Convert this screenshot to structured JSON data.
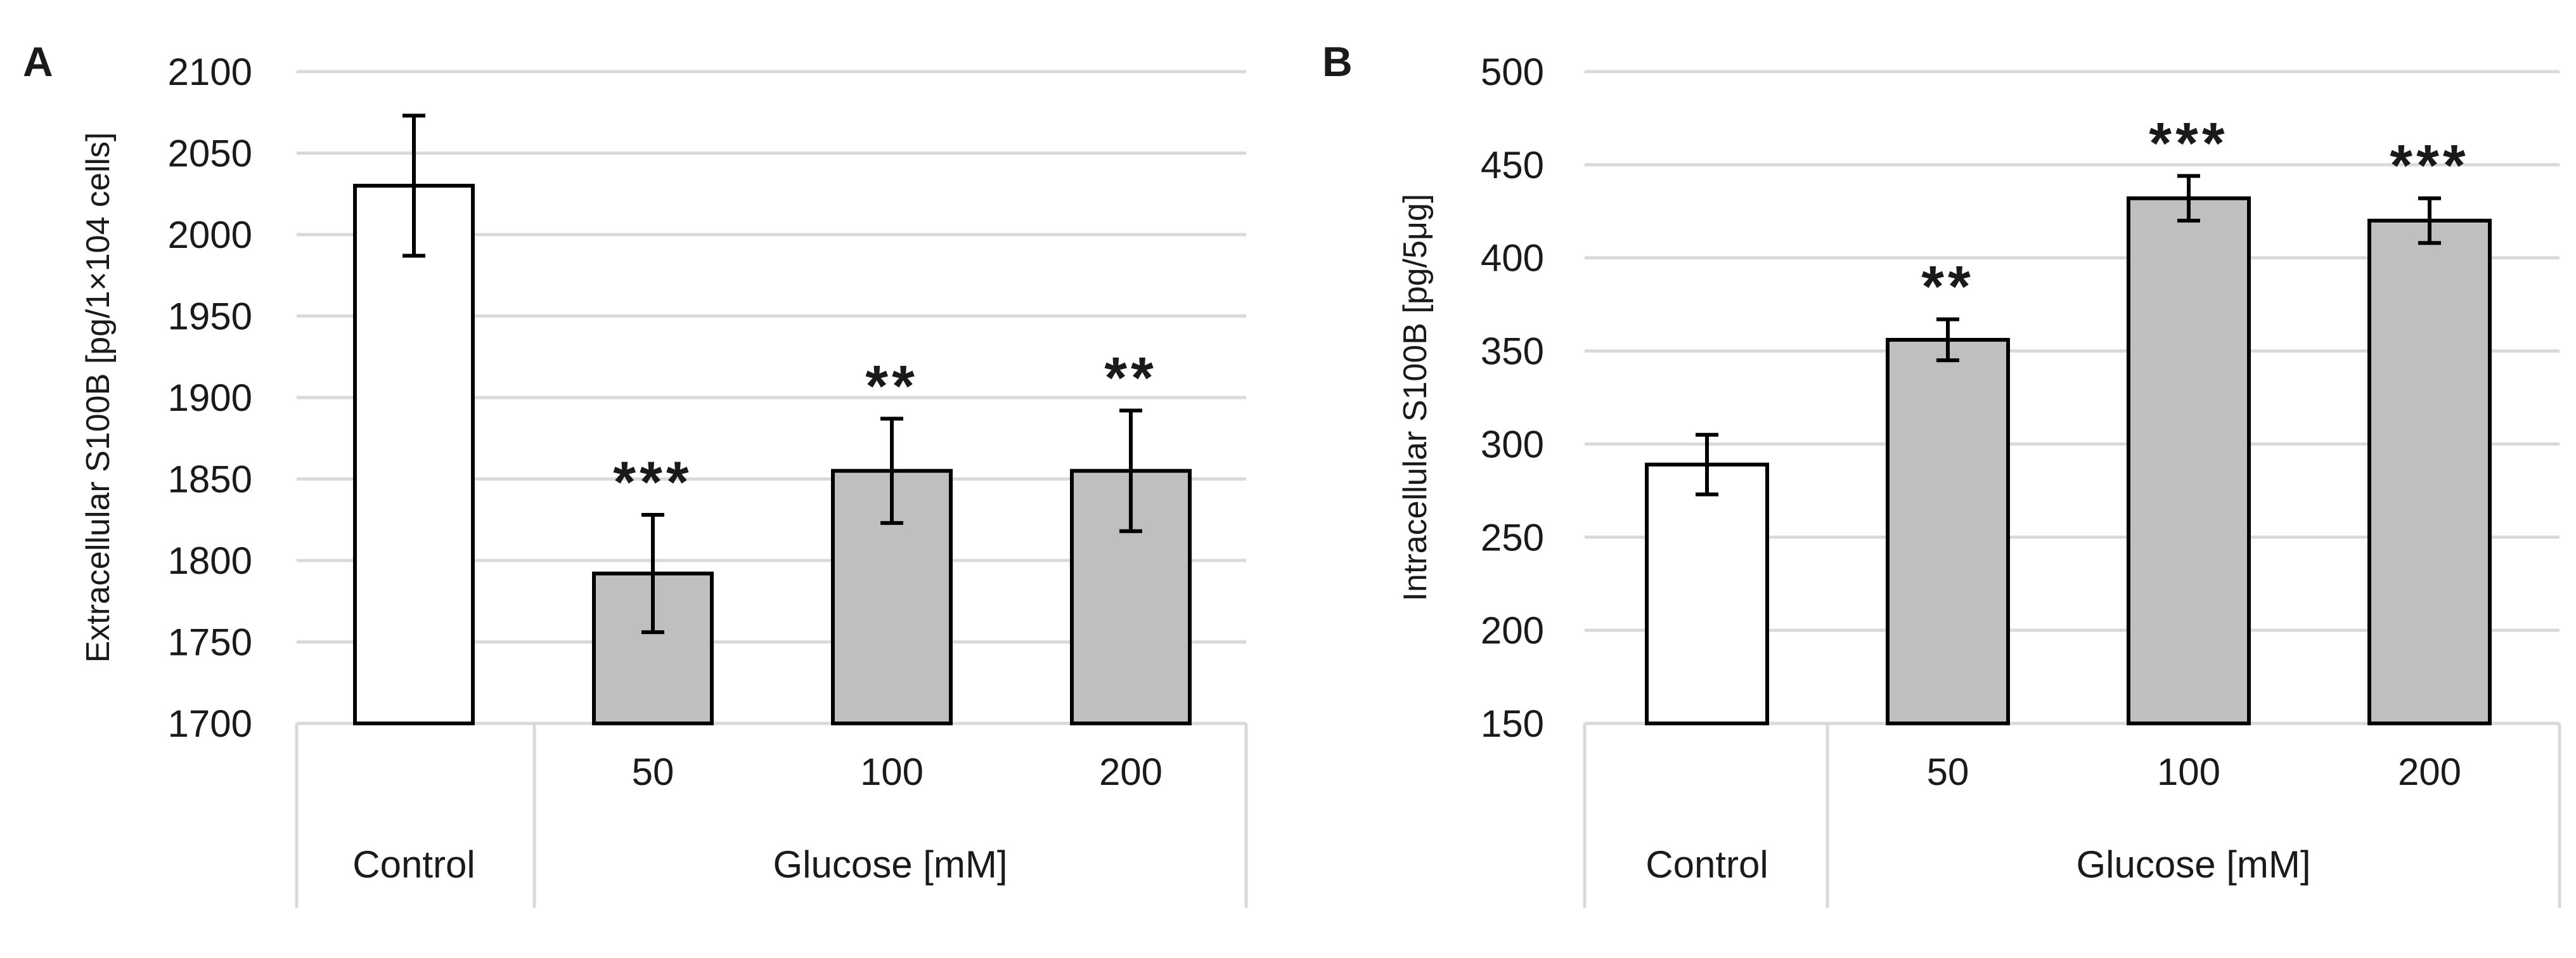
{
  "chart_data": [
    {
      "panel": "A",
      "type": "bar",
      "ylabel": "Extracellular S100B [pg/1×104 cells]",
      "yticks": [
        "1700",
        "1750",
        "1800",
        "1850",
        "1900",
        "1950",
        "2000",
        "2050",
        "2100"
      ],
      "ylim": [
        1700,
        2100
      ],
      "ytick_step": 50,
      "categories": [
        "Control",
        "50",
        "100",
        "200"
      ],
      "group_label": "Glucose [mM]",
      "values": [
        2030,
        1792,
        1855,
        1855
      ],
      "errors": [
        43,
        36,
        32,
        37
      ],
      "significance": [
        "",
        "***",
        "**",
        "**"
      ],
      "bar_colors": [
        "#ffffff",
        "#bfbfbf",
        "#bfbfbf",
        "#bfbfbf"
      ]
    },
    {
      "panel": "B",
      "type": "bar",
      "ylabel": "Intracellular S100B [pg/5μg]",
      "yticks": [
        "150",
        "200",
        "250",
        "300",
        "350",
        "400",
        "450",
        "500"
      ],
      "ylim": [
        150,
        500
      ],
      "ytick_step": 50,
      "categories": [
        "Control",
        "50",
        "100",
        "200"
      ],
      "group_label": "Glucose [mM]",
      "values": [
        289,
        356,
        432,
        420
      ],
      "errors": [
        16,
        11,
        12,
        12
      ],
      "significance": [
        "",
        "**",
        "***",
        "***"
      ],
      "bar_colors": [
        "#ffffff",
        "#bfbfbf",
        "#bfbfbf",
        "#bfbfbf"
      ]
    }
  ]
}
